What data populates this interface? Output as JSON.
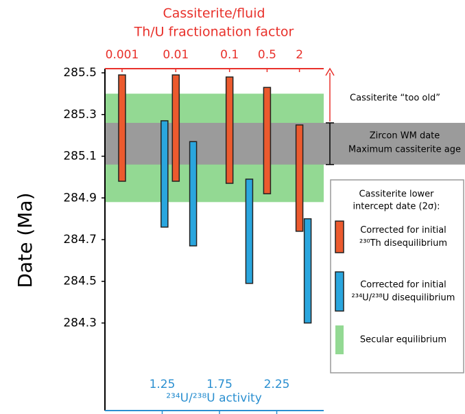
{
  "chart_data": {
    "type": "range-bar",
    "title": [
      "Cassiterite/fluid",
      "Th/U fractionation factor"
    ],
    "ylabel": "Date (Ma)",
    "xlabel": "²³⁴U/²³⁸U activity",
    "ylim": [
      283.88,
      285.52
    ],
    "yticks": [
      285.5,
      285.3,
      285.1,
      284.9,
      284.7,
      284.5,
      284.3
    ],
    "xlim": [
      0.75,
      2.66
    ],
    "xticks": [
      1.25,
      1.75,
      2.25
    ],
    "x2lim": [
      0.00048,
      5.66
    ],
    "x2ticks": [
      0.001,
      0.01,
      0.1,
      0.5,
      2
    ],
    "x2log": true,
    "x2color": "#e8302a",
    "xcolor": "#2a8fd0",
    "series": [
      {
        "name": [
          "Corrected for initial",
          "²³⁰Th disequilibrium"
        ],
        "color": "#ec5a2e",
        "axis": "x2",
        "x": [
          0.001,
          0.01,
          0.1,
          0.5,
          2
        ],
        "low": [
          284.98,
          284.98,
          284.97,
          284.92,
          284.74
        ],
        "high": [
          285.49,
          285.49,
          285.48,
          285.43,
          285.25
        ]
      },
      {
        "name": [
          "Corrected for initial",
          "²³⁴U/²³⁸U disequilibrium"
        ],
        "color": "#2aa6de",
        "axis": "x",
        "x": [
          1.27,
          1.52,
          2.01,
          2.52
        ],
        "low": [
          284.76,
          284.67,
          284.49,
          284.3
        ],
        "high": [
          285.27,
          285.17,
          284.99,
          284.8
        ]
      }
    ],
    "bands": [
      {
        "name": [
          "Secular equilibrium"
        ],
        "color": "#93d993",
        "range": [
          284.88,
          285.4
        ]
      },
      {
        "name": [
          "Zircon WM date",
          "Maximum cassiterite age"
        ],
        "color": "#9b9b9b",
        "range": [
          285.06,
          285.26
        ]
      }
    ],
    "annotation": "Cassiterite “too old”",
    "legend_title": [
      "Cassiterite lower",
      "intercept date (2σ):"
    ]
  }
}
